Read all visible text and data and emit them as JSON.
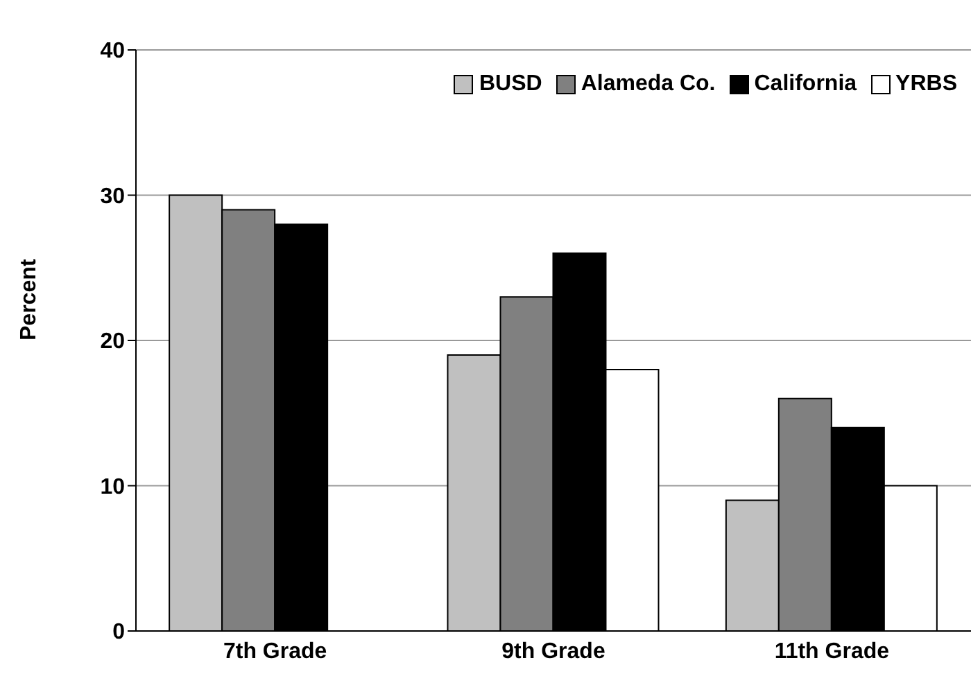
{
  "chart_data": {
    "type": "bar",
    "ylabel": "Percent",
    "categories": [
      "7th Grade",
      "9th Grade",
      "11th Grade"
    ],
    "series": [
      {
        "name": "BUSD",
        "color": "#c0c0c0",
        "values": [
          30,
          19,
          9
        ]
      },
      {
        "name": "Alameda Co.",
        "color": "#808080",
        "values": [
          29,
          23,
          16
        ]
      },
      {
        "name": "California",
        "color": "#000000",
        "values": [
          28,
          26,
          14
        ]
      },
      {
        "name": "YRBS",
        "color": "#ffffff",
        "values": [
          null,
          18,
          10
        ]
      }
    ],
    "ylim": [
      0,
      40
    ],
    "yticks": [
      0,
      10,
      20,
      30,
      40
    ],
    "grid": "y",
    "legend": "top right"
  }
}
